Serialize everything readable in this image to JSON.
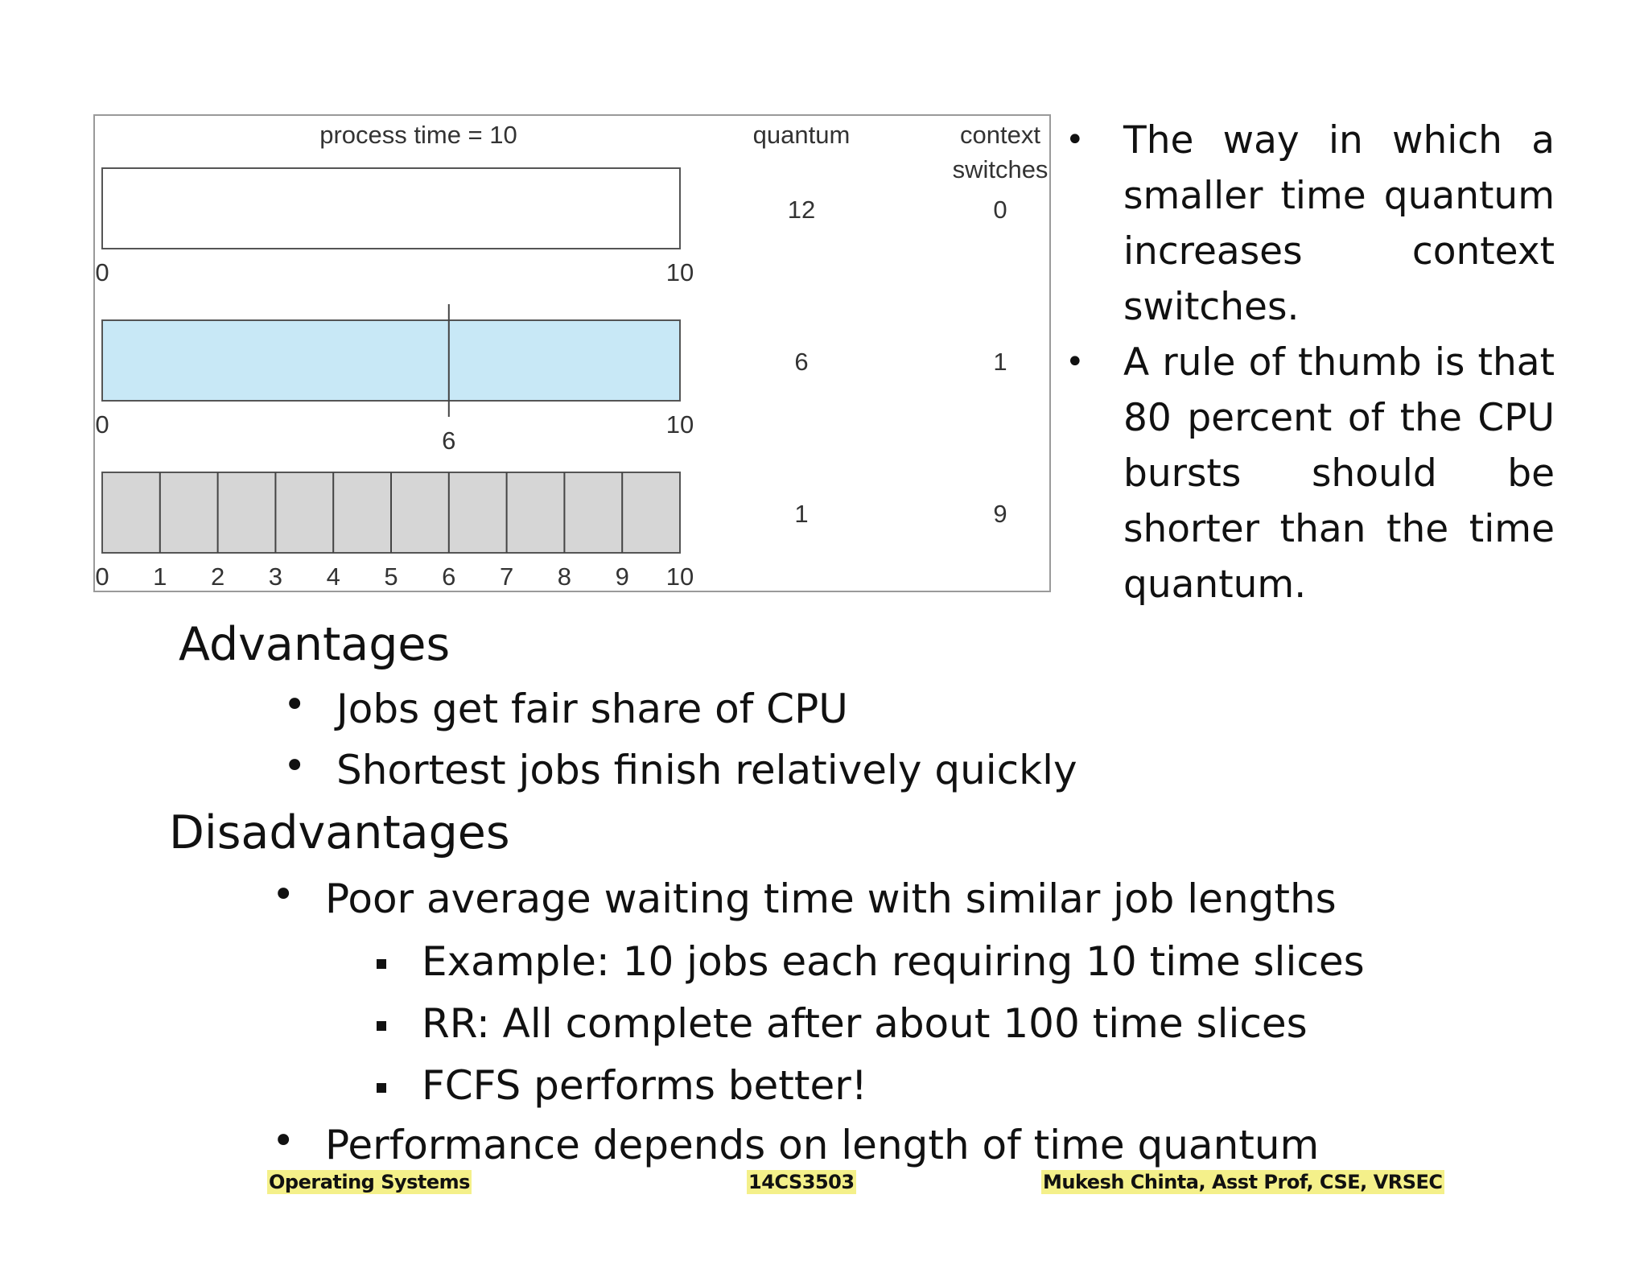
{
  "figure": {
    "header_process_time": "process time = 10",
    "header_quantum": "quantum",
    "header_context_line1": "context",
    "header_context_line2": "switches",
    "rows": [
      {
        "quantum": "12",
        "switches": "0",
        "divisions": [],
        "fill": "#ffffff",
        "ticks": [
          "0",
          "10"
        ],
        "tick_values": [
          0,
          10
        ]
      },
      {
        "quantum": "6",
        "switches": "1",
        "divisions": [
          6
        ],
        "fill": "#c8e8f6",
        "ticks": [
          "0",
          "6",
          "10"
        ],
        "tick_values": [
          0,
          6,
          10
        ]
      },
      {
        "quantum": "1",
        "switches": "9",
        "divisions": [
          1,
          2,
          3,
          4,
          5,
          6,
          7,
          8,
          9
        ],
        "fill": "#d6d6d6",
        "ticks": [
          "0",
          "1",
          "2",
          "3",
          "4",
          "5",
          "6",
          "7",
          "8",
          "9",
          "10"
        ],
        "tick_values": [
          0,
          1,
          2,
          3,
          4,
          5,
          6,
          7,
          8,
          9,
          10
        ]
      }
    ]
  },
  "bullets": [
    "The way in which a smaller time quantum increases context switches.",
    "A rule of thumb is that 80 percent of the CPU bursts should be shorter than the time quantum."
  ],
  "advantages": {
    "heading": "Advantages",
    "items": [
      "Jobs get fair share of CPU",
      "Shortest jobs finish relatively quickly"
    ]
  },
  "disadvantages": {
    "heading": "Disadvantages",
    "item1": "Poor average waiting time with similar job lengths",
    "subitems": [
      "Example: 10 jobs each requiring 10 time slices",
      "RR: All complete after about 100 time slices",
      "FCFS performs better!"
    ],
    "item2": "Performance depends on length of time quantum"
  },
  "footer": {
    "course": "Operating Systems",
    "code": "14CS3503",
    "author": "Mukesh Chinta, Asst Prof, CSE, VRSEC"
  }
}
